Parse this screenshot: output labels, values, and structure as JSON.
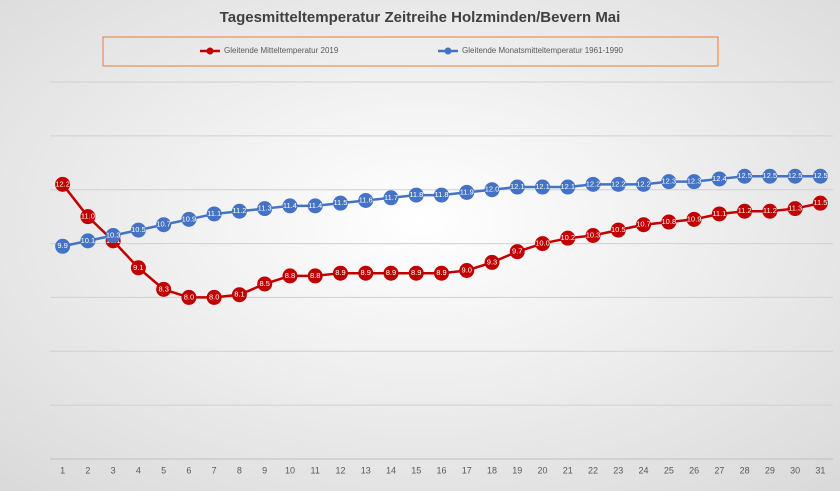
{
  "chart_data": {
    "type": "line",
    "title": "Tagesmitteltemperatur Zeitreihe Holzminden/Bevern Mai",
    "categories": [
      1,
      2,
      3,
      4,
      5,
      6,
      7,
      8,
      9,
      10,
      11,
      12,
      13,
      14,
      15,
      16,
      17,
      18,
      19,
      20,
      21,
      22,
      23,
      24,
      25,
      26,
      27,
      28,
      29,
      30,
      31
    ],
    "series": [
      {
        "name": "Gleitende Mitteltemperatur 2019",
        "color": "#c00000",
        "values": [
          12.2,
          11.0,
          10.1,
          9.1,
          8.3,
          8.0,
          8.0,
          8.1,
          8.5,
          8.8,
          8.8,
          8.9,
          8.9,
          8.9,
          8.9,
          8.9,
          9.0,
          9.3,
          9.7,
          10.0,
          10.2,
          10.3,
          10.5,
          10.7,
          10.8,
          10.9,
          11.1,
          11.2,
          11.2,
          11.3,
          11.5
        ],
        "value_labels": [
          "12.2",
          "11.0",
          "10.1",
          "9.1",
          "8.3",
          "8.0",
          "8.0",
          "8.1",
          "8.5",
          "8.8",
          "8.8",
          "8.9",
          "8.9",
          "8.9",
          "8.9",
          "8.9",
          "9.0",
          "9.3",
          "9.7",
          "10.0",
          "10.2",
          "10.3",
          "10.5",
          "10.7",
          "10.8",
          "10.9",
          "11.1",
          "11.2",
          "11.2",
          "11.3",
          "11.5"
        ]
      },
      {
        "name": "Gleitende Monatsmitteltemperatur 1961-1990",
        "color": "#4472c4",
        "values": [
          9.9,
          10.1,
          10.3,
          10.5,
          10.7,
          10.9,
          11.1,
          11.2,
          11.3,
          11.4,
          11.4,
          11.5,
          11.6,
          11.7,
          11.8,
          11.8,
          11.9,
          12.0,
          12.1,
          12.1,
          12.1,
          12.2,
          12.2,
          12.2,
          12.3,
          12.3,
          12.4,
          12.5,
          12.5,
          12.5,
          12.5
        ],
        "value_labels": [
          "9.9",
          "10.1",
          "10.3",
          "10.5",
          "10.7",
          "10.9",
          "11.1",
          "11.2",
          "11.3",
          "11.4",
          "11.4",
          "11.5",
          "11.6",
          "11.7",
          "11.8",
          "11.8",
          "11.9",
          "12.0",
          "12.1",
          "12.1",
          "12.1",
          "12.2",
          "12.2",
          "12.2",
          "12.3",
          "12.3",
          "12.4",
          "12.5",
          "12.5",
          "12.5",
          "12.5"
        ]
      }
    ],
    "ylim": [
      2,
      16
    ],
    "yticks": [
      2,
      4,
      6,
      8,
      10,
      12,
      14,
      16
    ],
    "grid": true
  }
}
